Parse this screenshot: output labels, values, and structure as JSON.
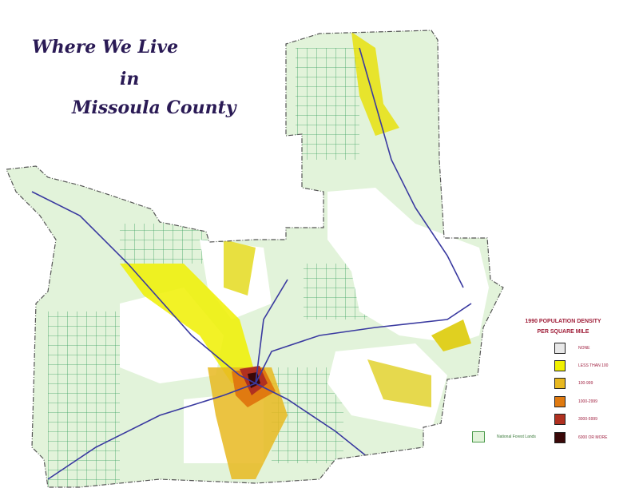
{
  "title": {
    "line1": "Where We Live",
    "line2": "in",
    "line3": "Missoula County"
  },
  "legend": {
    "title_line1": "1990 POPULATION DENSITY",
    "title_line2": "PER SQUARE MILE",
    "items": [
      {
        "label": "NONE",
        "color": "#e8e8e8"
      },
      {
        "label": "LESS THAN 100",
        "color": "#f0f000"
      },
      {
        "label": "100-999",
        "color": "#e8b820"
      },
      {
        "label": "1000-2999",
        "color": "#e07a10"
      },
      {
        "label": "3000-5999",
        "color": "#b03020"
      },
      {
        "label": "6000 OR MORE",
        "color": "#3a0808"
      }
    ],
    "forest": {
      "label": "National Forest Lands",
      "color": "#e2f3da"
    }
  },
  "colors": {
    "forest": "#e2f3da",
    "boundary": "#555555",
    "water": "#3a3aa0",
    "grid": "#3aa060"
  }
}
